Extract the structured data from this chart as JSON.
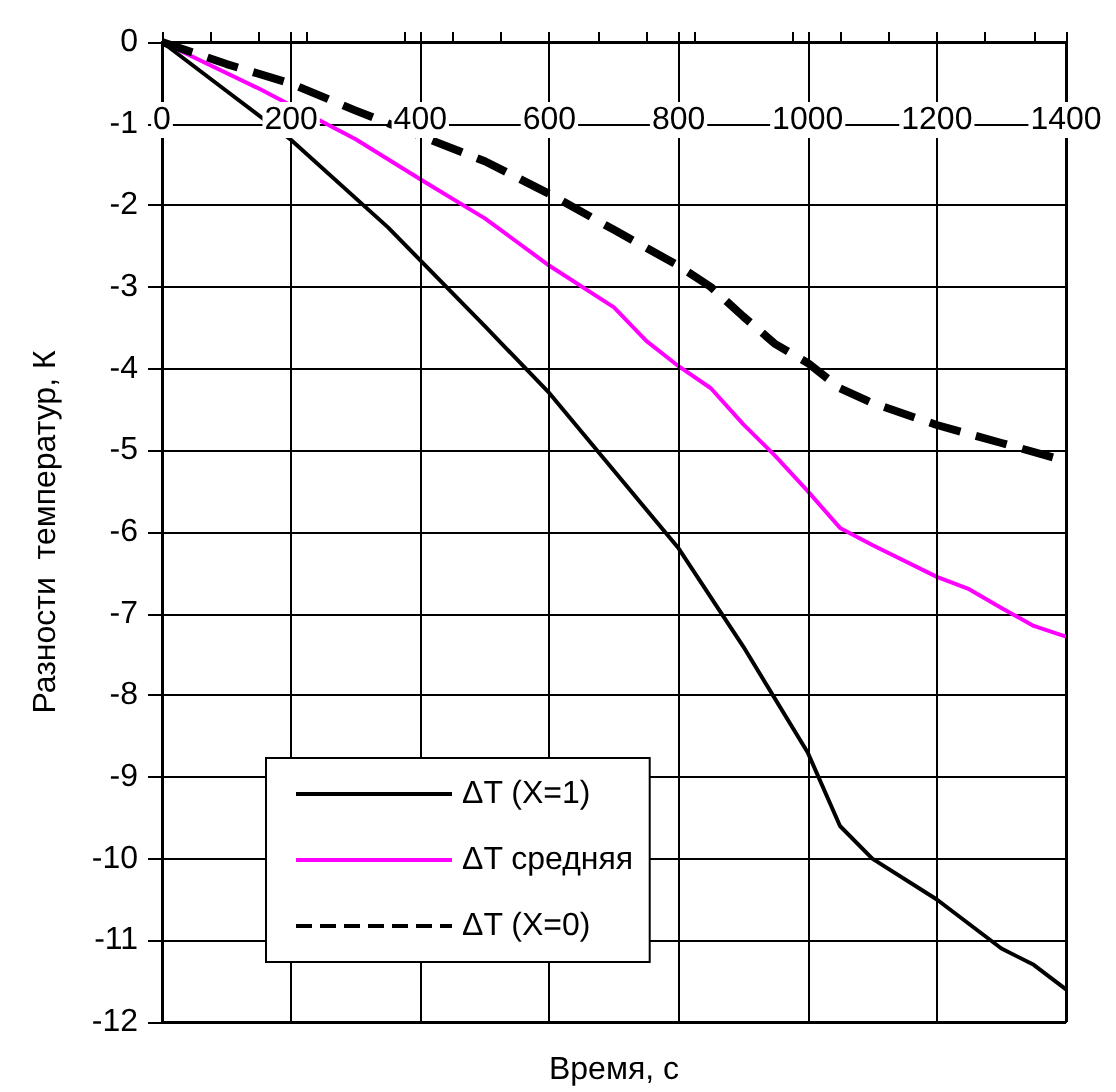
{
  "chart_data": {
    "type": "line",
    "xlabel": "Время, с",
    "ylabel": "Разности  температур, К",
    "x": [
      0,
      100,
      200,
      350,
      500,
      600,
      700,
      800,
      900,
      1000,
      1050,
      1100,
      1200,
      1300,
      1350,
      1400
    ],
    "xlim": [
      0,
      1400
    ],
    "xticks": [
      0,
      200,
      400,
      600,
      800,
      1000,
      1200,
      1400
    ],
    "ylim": [
      -12,
      0
    ],
    "yticks": [
      -12,
      -11,
      -10,
      -9,
      -8,
      -7,
      -6,
      -5,
      -4,
      -3,
      -2,
      -1,
      0
    ],
    "grid": true,
    "legend": "bottom left",
    "marker": "none",
    "series": [
      {
        "name": "ΔT (X=1)",
        "color": "#000000",
        "line_style": "solid",
        "values": [
          0,
          -0.6,
          -1.2,
          -2.27,
          -3.48,
          -4.3,
          -5.25,
          -6.2,
          -7.4,
          -8.7,
          -9.6,
          -10.0,
          -10.5,
          -11.1,
          -11.3,
          -11.6
        ]
      },
      {
        "name": "ΔT средняя",
        "color": "#ff00ff",
        "line_style": "solid",
        "x": [
          0,
          150,
          300,
          400,
          500,
          600,
          700,
          750,
          800,
          850,
          900,
          950,
          1000,
          1050,
          1100,
          1200,
          1250,
          1300,
          1350,
          1400
        ],
        "values": [
          0,
          -0.57,
          -1.19,
          -1.68,
          -2.16,
          -2.74,
          -3.25,
          -3.66,
          -3.97,
          -4.24,
          -4.68,
          -5.07,
          -5.5,
          -5.95,
          -6.16,
          -6.55,
          -6.7,
          -6.93,
          -7.15,
          -7.28
        ]
      },
      {
        "name": "ΔT (X=0)",
        "color": "#000000",
        "line_style": "dashed",
        "x": [
          0,
          100,
          200,
          300,
          400,
          500,
          600,
          700,
          800,
          850,
          900,
          950,
          1000,
          1050,
          1100,
          1200,
          1300,
          1400
        ],
        "values": [
          0,
          -0.27,
          -0.51,
          -0.84,
          -1.15,
          -1.46,
          -1.86,
          -2.3,
          -2.74,
          -3.0,
          -3.36,
          -3.7,
          -3.93,
          -4.24,
          -4.42,
          -4.69,
          -4.91,
          -5.13
        ]
      }
    ]
  }
}
